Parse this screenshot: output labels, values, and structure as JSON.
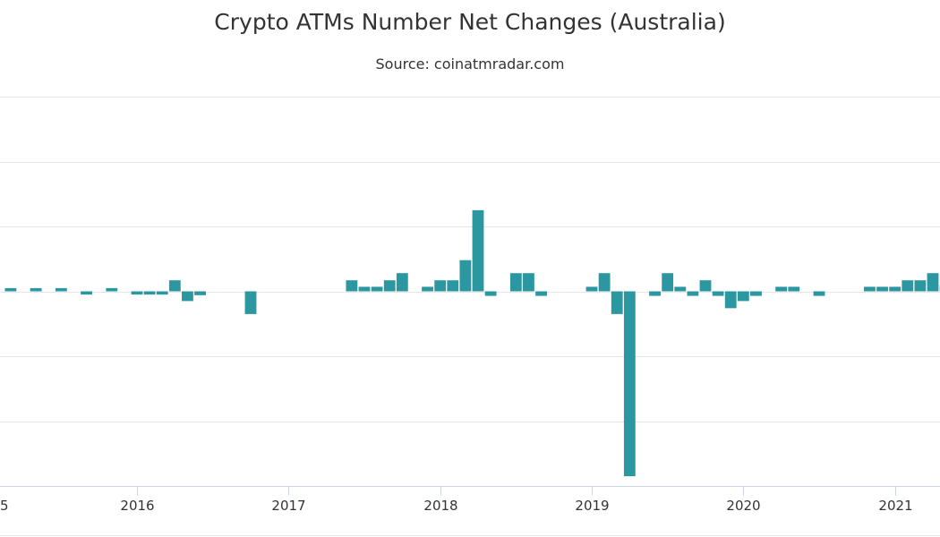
{
  "chart_data": {
    "type": "bar",
    "title": "Crypto ATMs Number Net Changes (Australia)",
    "subtitle": "Source: coinatmradar.com",
    "xlabel": "",
    "ylabel": "",
    "x_tick_labels": [
      "5",
      "2016",
      "2017",
      "2018",
      "2019",
      "2020",
      "2021"
    ],
    "x_tick_dates": [
      "2015-01",
      "2016-01",
      "2017-01",
      "2018-01",
      "2019-01",
      "2020-01",
      "2021-01"
    ],
    "ylim": [
      -3,
      3
    ],
    "grid": true,
    "legend": false,
    "colors": {
      "bar": "#2a97a1",
      "grid": "#e6e6e6",
      "axis": "#ccd6eb"
    },
    "series": [
      {
        "x": [
          "2015-01",
          "2015-03",
          "2015-05",
          "2015-07",
          "2015-09",
          "2015-11",
          "2016-01",
          "2016-02",
          "2016-03",
          "2016-04",
          "2016-05",
          "2016-06",
          "2016-10",
          "2017-06",
          "2017-07",
          "2017-08",
          "2017-09",
          "2017-10",
          "2017-12",
          "2018-01",
          "2018-02",
          "2018-03",
          "2018-04",
          "2018-05",
          "2018-07",
          "2018-08",
          "2018-09",
          "2019-01",
          "2019-02",
          "2019-03",
          "2019-04",
          "2019-06",
          "2019-07",
          "2019-08",
          "2019-09",
          "2019-10",
          "2019-11",
          "2019-12",
          "2020-01",
          "2020-02",
          "2020-04",
          "2020-05",
          "2020-07",
          "2020-11",
          "2020-12",
          "2021-01",
          "2021-02",
          "2021-03",
          "2021-04",
          "2021-05"
        ],
        "values": [
          0.05,
          0.05,
          0.05,
          0.05,
          -0.05,
          0.05,
          -0.05,
          -0.05,
          -0.05,
          0.17,
          -0.15,
          -0.06,
          -0.35,
          0.17,
          0.07,
          0.07,
          0.17,
          0.28,
          0.07,
          0.17,
          0.17,
          0.48,
          1.25,
          -0.07,
          0.28,
          0.28,
          -0.07,
          0.07,
          0.28,
          -0.35,
          -2.85,
          -0.07,
          0.28,
          0.07,
          -0.07,
          0.17,
          -0.07,
          -0.26,
          -0.15,
          -0.07,
          0.07,
          0.07,
          -0.07,
          0.07,
          0.07,
          0.07,
          0.17,
          0.17,
          0.28,
          0.1
        ]
      }
    ]
  }
}
